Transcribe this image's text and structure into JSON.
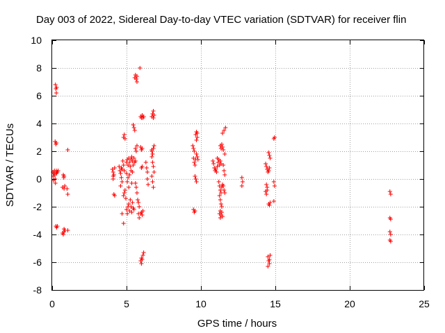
{
  "chart_data": {
    "type": "scatter",
    "title": "Day 003 of 2022, Sidereal Day-to-day VTEC variation (SDTVAR) for receiver flin",
    "xlabel": "GPS time / hours",
    "ylabel": "SDTVAR / TECUs",
    "xlim": [
      0,
      25
    ],
    "ylim": [
      -8,
      10
    ],
    "xticks": [
      0,
      5,
      10,
      15,
      20,
      25
    ],
    "yticks": [
      -8,
      -6,
      -4,
      -2,
      0,
      2,
      4,
      6,
      8,
      10
    ],
    "grid": true,
    "marker": "+",
    "color": "#ff0000",
    "series": [
      {
        "name": "SDTVAR",
        "points": [
          [
            0.05,
            0.5
          ],
          [
            0.08,
            0.2
          ],
          [
            0.1,
            -0.1
          ],
          [
            0.12,
            0.4
          ],
          [
            0.15,
            0.6
          ],
          [
            0.18,
            0.3
          ],
          [
            0.2,
            0.0
          ],
          [
            0.22,
            -0.3
          ],
          [
            0.25,
            0.5
          ],
          [
            0.28,
            0.6
          ],
          [
            0.3,
            0.4
          ],
          [
            0.35,
            0.5
          ],
          [
            0.4,
            0.6
          ],
          [
            0.22,
            6.8
          ],
          [
            0.25,
            6.5
          ],
          [
            0.28,
            6.2
          ],
          [
            0.3,
            6.6
          ],
          [
            0.2,
            2.7
          ],
          [
            0.25,
            2.5
          ],
          [
            0.28,
            2.6
          ],
          [
            0.25,
            -3.4
          ],
          [
            0.3,
            -3.5
          ],
          [
            0.35,
            -3.4
          ],
          [
            0.75,
            0.3
          ],
          [
            0.78,
            0.1
          ],
          [
            0.8,
            0.2
          ],
          [
            0.7,
            -0.6
          ],
          [
            0.8,
            -0.7
          ],
          [
            0.85,
            -0.5
          ],
          [
            0.7,
            -3.9
          ],
          [
            0.75,
            -4.0
          ],
          [
            0.8,
            -3.8
          ],
          [
            0.85,
            -3.7
          ],
          [
            1.05,
            -3.7
          ],
          [
            0.8,
            -3.6
          ],
          [
            1.05,
            2.1
          ],
          [
            1.05,
            -1.1
          ],
          [
            1.0,
            -0.7
          ],
          [
            4.05,
            0.7
          ],
          [
            4.1,
            0.5
          ],
          [
            4.15,
            0.3
          ],
          [
            4.2,
            0.8
          ],
          [
            4.1,
            0.0
          ],
          [
            4.15,
            -1.1
          ],
          [
            4.2,
            -1.2
          ],
          [
            4.1,
            0.2
          ],
          [
            4.5,
            0.9
          ],
          [
            4.55,
            0.6
          ],
          [
            4.6,
            0.4
          ],
          [
            4.65,
            0.1
          ],
          [
            4.7,
            -0.2
          ],
          [
            4.6,
            -0.5
          ],
          [
            4.65,
            0.8
          ],
          [
            4.7,
            0.7
          ],
          [
            4.75,
            1.3
          ],
          [
            4.8,
            1.0
          ],
          [
            4.85,
            0.6
          ],
          [
            4.8,
            3.0
          ],
          [
            4.85,
            3.2
          ],
          [
            4.9,
            2.9
          ],
          [
            4.8,
            -1.2
          ],
          [
            4.85,
            -1.0
          ],
          [
            4.9,
            -0.8
          ],
          [
            4.95,
            -1.4
          ],
          [
            4.7,
            -2.5
          ],
          [
            4.8,
            -3.2
          ],
          [
            5.0,
            -2.2
          ],
          [
            5.05,
            -2.5
          ],
          [
            5.1,
            -2.0
          ],
          [
            5.15,
            -1.8
          ],
          [
            5.2,
            -2.3
          ],
          [
            5.25,
            -1.5
          ],
          [
            5.3,
            -2.0
          ],
          [
            5.35,
            -2.4
          ],
          [
            5.4,
            -1.7
          ],
          [
            5.45,
            -2.1
          ],
          [
            5.5,
            -2.2
          ],
          [
            5.0,
            1.2
          ],
          [
            5.05,
            1.4
          ],
          [
            5.1,
            1.0
          ],
          [
            5.15,
            1.5
          ],
          [
            5.2,
            1.2
          ],
          [
            5.25,
            0.9
          ],
          [
            5.3,
            1.4
          ],
          [
            5.35,
            1.6
          ],
          [
            5.4,
            1.3
          ],
          [
            5.45,
            1.0
          ],
          [
            5.5,
            1.5
          ],
          [
            5.55,
            1.2
          ],
          [
            5.6,
            1.3
          ],
          [
            5.0,
            0.4
          ],
          [
            5.05,
            -0.2
          ],
          [
            5.1,
            0.1
          ],
          [
            5.15,
            -0.6
          ],
          [
            5.2,
            0.3
          ],
          [
            5.3,
            0.6
          ],
          [
            5.35,
            -0.3
          ],
          [
            5.4,
            0.5
          ],
          [
            5.45,
            3.9
          ],
          [
            5.5,
            3.7
          ],
          [
            5.55,
            3.5
          ],
          [
            5.55,
            7.3
          ],
          [
            5.6,
            7.5
          ],
          [
            5.65,
            7.2
          ],
          [
            5.7,
            7.0
          ],
          [
            5.7,
            7.4
          ],
          [
            5.6,
            2.2
          ],
          [
            5.65,
            2.0
          ],
          [
            5.7,
            2.4
          ],
          [
            5.6,
            -0.3
          ],
          [
            5.65,
            -0.6
          ],
          [
            5.7,
            -1.0
          ],
          [
            5.75,
            -1.5
          ],
          [
            5.8,
            -1.7
          ],
          [
            5.85,
            -2.0
          ],
          [
            5.8,
            -2.5
          ],
          [
            5.85,
            -2.8
          ],
          [
            5.9,
            8.0
          ],
          [
            5.95,
            2.3
          ],
          [
            6.0,
            2.1
          ],
          [
            6.05,
            2.2
          ],
          [
            6.0,
            0.8
          ],
          [
            6.05,
            0.9
          ],
          [
            5.95,
            4.5
          ],
          [
            6.0,
            4.4
          ],
          [
            6.05,
            4.6
          ],
          [
            6.1,
            4.4
          ],
          [
            6.15,
            4.5
          ],
          [
            5.95,
            -2.5
          ],
          [
            6.0,
            -2.4
          ],
          [
            6.05,
            -2.6
          ],
          [
            6.1,
            -2.3
          ],
          [
            5.95,
            -5.9
          ],
          [
            6.0,
            -6.1
          ],
          [
            6.05,
            -5.8
          ],
          [
            6.1,
            -5.5
          ],
          [
            6.15,
            -5.3
          ],
          [
            6.0,
            -5.7
          ],
          [
            6.3,
            1.2
          ],
          [
            6.35,
            0.8
          ],
          [
            6.4,
            0.5
          ],
          [
            6.4,
            0.0
          ],
          [
            6.45,
            -0.4
          ],
          [
            6.7,
            4.5
          ],
          [
            6.75,
            4.7
          ],
          [
            6.8,
            4.9
          ],
          [
            6.85,
            4.6
          ],
          [
            6.8,
            4.4
          ],
          [
            6.7,
            2.0
          ],
          [
            6.75,
            1.8
          ],
          [
            6.8,
            2.2
          ],
          [
            6.85,
            2.4
          ],
          [
            6.7,
            1.6
          ],
          [
            6.75,
            1.2
          ],
          [
            6.8,
            0.9
          ],
          [
            6.85,
            0.5
          ],
          [
            6.7,
            0.2
          ],
          [
            6.75,
            -0.2
          ],
          [
            6.8,
            -0.6
          ],
          [
            6.7,
            2.1
          ],
          [
            9.45,
            2.4
          ],
          [
            9.5,
            2.2
          ],
          [
            9.55,
            2.0
          ],
          [
            9.5,
            1.5
          ],
          [
            9.55,
            1.2
          ],
          [
            9.6,
            1.0
          ],
          [
            9.65,
            1.4
          ],
          [
            9.5,
            -2.2
          ],
          [
            9.55,
            -2.4
          ],
          [
            9.6,
            -2.3
          ],
          [
            9.6,
            0.2
          ],
          [
            9.65,
            0.0
          ],
          [
            9.7,
            -0.2
          ],
          [
            9.65,
            3.2
          ],
          [
            9.7,
            3.4
          ],
          [
            9.75,
            3.0
          ],
          [
            9.7,
            2.8
          ],
          [
            9.75,
            3.3
          ],
          [
            9.7,
            1.8
          ],
          [
            9.75,
            1.6
          ],
          [
            9.8,
            1.4
          ],
          [
            10.8,
            1.3
          ],
          [
            10.85,
            1.1
          ],
          [
            10.9,
            0.8
          ],
          [
            10.95,
            0.6
          ],
          [
            11.0,
            0.7
          ],
          [
            11.05,
            0.5
          ],
          [
            11.1,
            0.9
          ],
          [
            11.1,
            1.5
          ],
          [
            11.15,
            1.2
          ],
          [
            11.2,
            1.4
          ],
          [
            11.25,
            1.0
          ],
          [
            11.3,
            1.3
          ],
          [
            11.35,
            1.1
          ],
          [
            11.2,
            -0.2
          ],
          [
            11.25,
            -0.5
          ],
          [
            11.3,
            -0.8
          ],
          [
            11.35,
            -1.0
          ],
          [
            11.4,
            -0.6
          ],
          [
            11.45,
            -0.4
          ],
          [
            11.25,
            -1.2
          ],
          [
            11.3,
            -1.5
          ],
          [
            11.35,
            -1.8
          ],
          [
            11.4,
            -2.0
          ],
          [
            11.3,
            -2.3
          ],
          [
            11.25,
            -2.5
          ],
          [
            11.3,
            -2.8
          ],
          [
            11.35,
            -2.6
          ],
          [
            11.4,
            -2.4
          ],
          [
            11.45,
            -2.7
          ],
          [
            11.3,
            2.4
          ],
          [
            11.35,
            2.2
          ],
          [
            11.4,
            2.5
          ],
          [
            11.45,
            2.3
          ],
          [
            11.5,
            2.1
          ],
          [
            11.45,
            3.3
          ],
          [
            11.55,
            3.5
          ],
          [
            11.65,
            3.7
          ],
          [
            11.6,
            1.8
          ],
          [
            11.5,
            1.0
          ],
          [
            11.55,
            0.6
          ],
          [
            11.6,
            0.3
          ],
          [
            11.5,
            -0.5
          ],
          [
            11.55,
            -0.8
          ],
          [
            11.6,
            -1.0
          ],
          [
            12.75,
            0.1
          ],
          [
            12.8,
            -0.2
          ],
          [
            12.75,
            -0.5
          ],
          [
            14.35,
            1.1
          ],
          [
            14.4,
            0.9
          ],
          [
            14.45,
            0.7
          ],
          [
            14.5,
            0.5
          ],
          [
            14.55,
            0.6
          ],
          [
            14.6,
            0.8
          ],
          [
            14.4,
            -0.4
          ],
          [
            14.45,
            -0.6
          ],
          [
            14.35,
            -0.9
          ],
          [
            14.4,
            -1.1
          ],
          [
            14.45,
            -0.8
          ],
          [
            14.55,
            1.9
          ],
          [
            14.6,
            1.7
          ],
          [
            14.65,
            1.5
          ],
          [
            14.55,
            -1.8
          ],
          [
            14.6,
            -1.9
          ],
          [
            14.65,
            -1.7
          ],
          [
            14.5,
            -5.6
          ],
          [
            14.55,
            -5.9
          ],
          [
            14.6,
            -6.1
          ],
          [
            14.5,
            -6.3
          ],
          [
            14.65,
            -5.5
          ],
          [
            14.6,
            -5.8
          ],
          [
            14.9,
            2.9
          ],
          [
            14.95,
            3.0
          ],
          [
            14.9,
            -0.2
          ],
          [
            14.95,
            -0.5
          ],
          [
            14.9,
            -1.6
          ],
          [
            22.7,
            -0.9
          ],
          [
            22.75,
            -1.1
          ],
          [
            22.7,
            -2.8
          ],
          [
            22.75,
            -2.9
          ],
          [
            22.7,
            -3.8
          ],
          [
            22.75,
            -4.0
          ],
          [
            22.7,
            -4.4
          ],
          [
            22.75,
            -4.5
          ]
        ]
      }
    ]
  }
}
